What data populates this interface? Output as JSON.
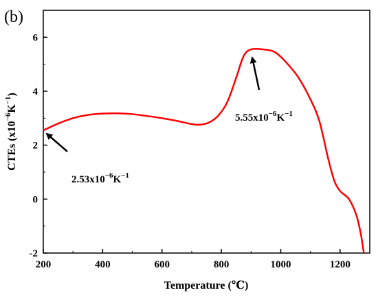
{
  "chart_data": {
    "type": "line",
    "panel_label": "(b)",
    "xlabel": "Temperature (℃)",
    "ylabel": "CTEs (x10",
    "ylabel_exp": "−6",
    "ylabel_unit": "K",
    "ylabel_unit_exp": "−1",
    "ylabel_close": ")",
    "xlim": [
      200,
      1300
    ],
    "ylim": [
      -2,
      7
    ],
    "x_ticks": [
      200,
      400,
      600,
      800,
      1000,
      1200
    ],
    "y_ticks": [
      -2,
      0,
      2,
      4,
      6
    ],
    "grid": false,
    "series": [
      {
        "color": "#ff0000",
        "points": [
          [
            200,
            2.55
          ],
          [
            250,
            2.8
          ],
          [
            300,
            3.0
          ],
          [
            350,
            3.12
          ],
          [
            400,
            3.17
          ],
          [
            450,
            3.18
          ],
          [
            500,
            3.15
          ],
          [
            550,
            3.08
          ],
          [
            600,
            3.0
          ],
          [
            650,
            2.9
          ],
          [
            700,
            2.78
          ],
          [
            730,
            2.76
          ],
          [
            760,
            2.85
          ],
          [
            790,
            3.1
          ],
          [
            820,
            3.6
          ],
          [
            850,
            4.5
          ],
          [
            875,
            5.3
          ],
          [
            900,
            5.55
          ],
          [
            940,
            5.55
          ],
          [
            980,
            5.45
          ],
          [
            1020,
            5.05
          ],
          [
            1060,
            4.5
          ],
          [
            1100,
            3.7
          ],
          [
            1130,
            2.9
          ],
          [
            1160,
            1.5
          ],
          [
            1180,
            0.7
          ],
          [
            1200,
            0.3
          ],
          [
            1230,
            0.0
          ],
          [
            1255,
            -0.6
          ],
          [
            1270,
            -1.3
          ],
          [
            1280,
            -2.0
          ]
        ]
      }
    ],
    "annotations": [
      {
        "text": "5.55x10",
        "exp": "−6",
        "unit": "K",
        "unit_exp": "−1",
        "arrow_to": [
          900,
          5.55
        ]
      },
      {
        "text": "2.53x10",
        "exp": "−6",
        "unit": "K",
        "unit_exp": "−1",
        "arrow_to": [
          205,
          2.53
        ]
      }
    ]
  }
}
